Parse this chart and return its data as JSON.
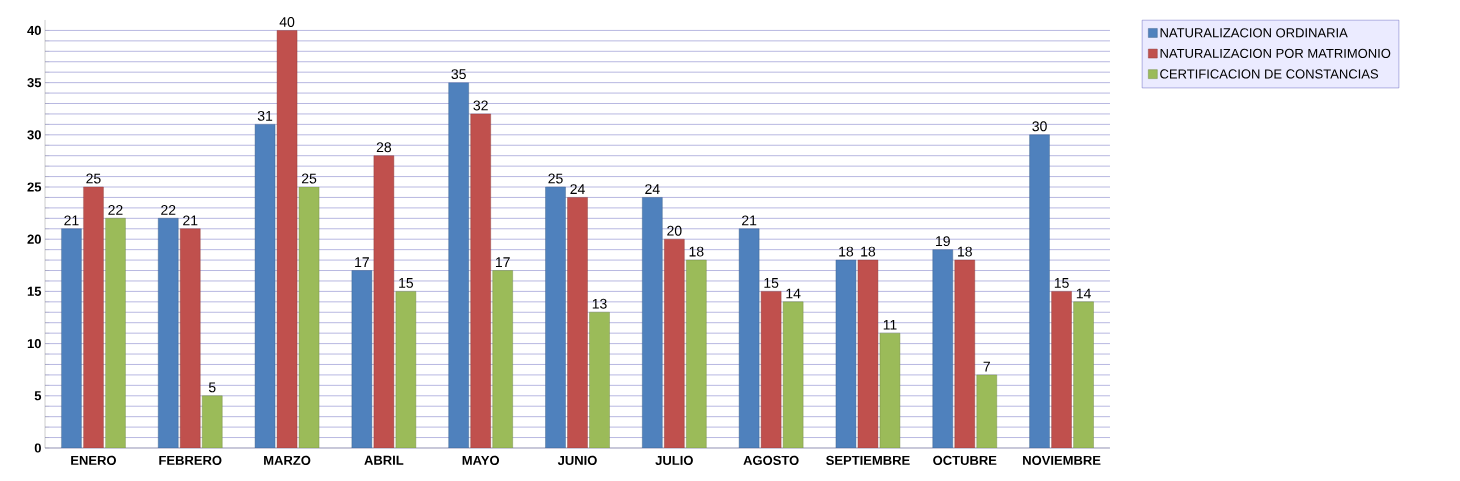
{
  "chart_data": {
    "type": "bar",
    "categories": [
      "ENERO",
      "FEBRERO",
      "MARZO",
      "ABRIL",
      "MAYO",
      "JUNIO",
      "JULIO",
      "AGOSTO",
      "SEPTIEMBRE",
      "OCTUBRE",
      "NOVIEMBRE"
    ],
    "series": [
      {
        "name": "NATURALIZACION ORDINARIA",
        "color": "#4f81bd",
        "values": [
          21,
          22,
          31,
          17,
          35,
          25,
          24,
          21,
          18,
          19,
          30
        ]
      },
      {
        "name": "NATURALIZACION POR MATRIMONIO",
        "color": "#c0504d",
        "values": [
          25,
          21,
          40,
          28,
          32,
          24,
          20,
          15,
          18,
          18,
          15
        ]
      },
      {
        "name": "CERTIFICACION DE CONSTANCIAS",
        "color": "#9bbb59",
        "values": [
          22,
          5,
          25,
          15,
          17,
          13,
          18,
          14,
          11,
          7,
          14
        ]
      }
    ],
    "ylim": [
      0,
      41
    ],
    "yticks": [
      0,
      {
        "value": 1,
        "label": null
      },
      {
        "value": 2,
        "label": null
      },
      {
        "value": 3,
        "label": null
      },
      {
        "value": 4,
        "label": null
      },
      5,
      {
        "value": 6,
        "label": null
      },
      {
        "value": 7,
        "label": null
      },
      {
        "value": 8,
        "label": null
      },
      {
        "value": 9,
        "label": null
      },
      10,
      {
        "value": 11,
        "label": null
      },
      {
        "value": 12,
        "label": null
      },
      {
        "value": 13,
        "label": null
      },
      {
        "value": 14,
        "label": null
      },
      15,
      {
        "value": 16,
        "label": null
      },
      {
        "value": 17,
        "label": null
      },
      {
        "value": 18,
        "label": null
      },
      {
        "value": 19,
        "label": null
      },
      20,
      {
        "value": 21,
        "label": null
      },
      {
        "value": 22,
        "label": null
      },
      {
        "value": 23,
        "label": null
      },
      {
        "value": 24,
        "label": null
      },
      25,
      {
        "value": 26,
        "label": null
      },
      {
        "value": 27,
        "label": null
      },
      {
        "value": 28,
        "label": null
      },
      {
        "value": 29,
        "label": null
      },
      30,
      {
        "value": 31,
        "label": null
      },
      {
        "value": 32,
        "label": null
      },
      {
        "value": 33,
        "label": null
      },
      {
        "value": 34,
        "label": null
      },
      35,
      {
        "value": 36,
        "label": null
      },
      {
        "value": 37,
        "label": null
      },
      {
        "value": 38,
        "label": null
      },
      {
        "value": 39,
        "label": null
      },
      40
    ],
    "grid": "y",
    "legend": "top right",
    "data_labels": true
  }
}
